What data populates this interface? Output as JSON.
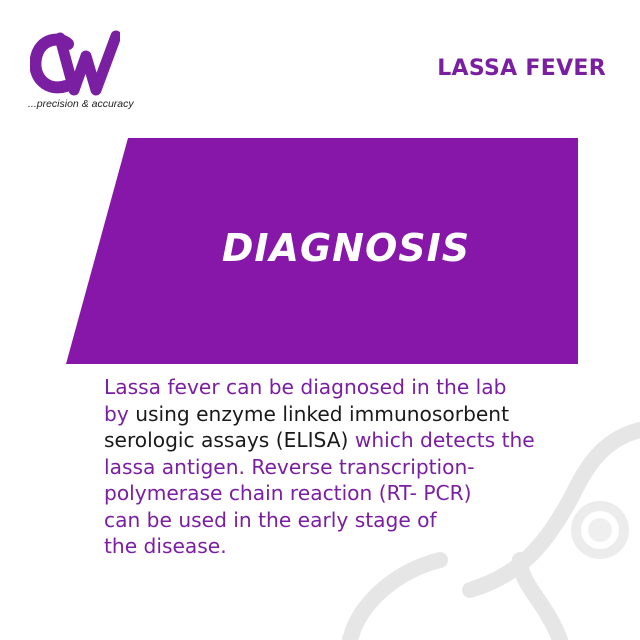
{
  "brand": {
    "logo_text": "CW",
    "tagline": "...precision & accuracy"
  },
  "header": {
    "title": "LASSA FEVER"
  },
  "banner": {
    "title": "DIAGNOSIS"
  },
  "body": {
    "lines": [
      [
        {
          "text": "Lassa fever can be diagnosed in the lab",
          "style": "purple"
        }
      ],
      [
        {
          "text": "by ",
          "style": "purple"
        },
        {
          "text": "using enzyme linked immunosorbent",
          "style": "dark"
        }
      ],
      [
        {
          "text": "serologic assays (ELISA) ",
          "style": "dark"
        },
        {
          "text": "which detects the",
          "style": "purple"
        }
      ],
      [
        {
          "text": "lassa antigen. Reverse transcription-",
          "style": "purple"
        }
      ],
      [
        {
          "text": "polymerase chain reaction (RT- PCR)",
          "style": "purple"
        }
      ],
      [
        {
          "text": "can be used in the early stage of",
          "style": "purple"
        }
      ],
      [
        {
          "text": "the disease.",
          "style": "purple"
        }
      ]
    ]
  },
  "colors": {
    "brand_purple": "#7b1fa2",
    "banner_purple": "#8617a8",
    "text_dark": "#1a1a1a",
    "background": "#ffffff"
  },
  "icons": [
    "stethoscope-icon"
  ]
}
